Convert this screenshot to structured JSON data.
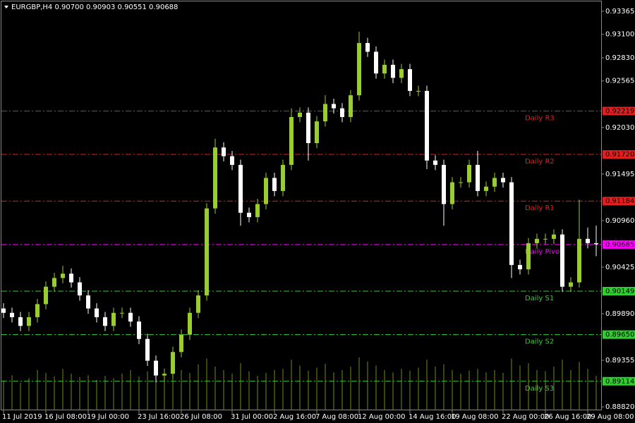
{
  "chart_data": {
    "type": "candlestick",
    "title": "EURGBP,H4  0.90700 0.90903 0.90551 0.90688",
    "categories": [
      "11 Jul 2019",
      null,
      null,
      null,
      null,
      "16 Jul 08:00",
      null,
      null,
      null,
      null,
      "19 Jul 00:00",
      null,
      null,
      null,
      null,
      null,
      "23 Jul 16:00",
      null,
      null,
      null,
      null,
      "26 Jul 08:00",
      null,
      null,
      null,
      null,
      null,
      "31 Jul 00:00",
      null,
      null,
      null,
      null,
      "2 Aug 16:00",
      null,
      null,
      null,
      null,
      "7 Aug 08:00",
      null,
      null,
      null,
      null,
      "12 Aug 00:00",
      null,
      null,
      null,
      null,
      null,
      "14 Aug 16:00",
      null,
      null,
      null,
      null,
      "19 Aug 08:00",
      null,
      null,
      null,
      null,
      null,
      "22 Aug 00:00",
      null,
      null,
      null,
      null,
      "26 Aug 16:00",
      null,
      null,
      null,
      null,
      "29 Aug 08:00",
      null
    ],
    "open": [
      0.8995,
      0.899,
      0.8985,
      0.8975,
      0.8985,
      0.9,
      0.902,
      0.903,
      0.9035,
      0.9025,
      0.901,
      0.8995,
      0.8985,
      0.8975,
      0.899,
      0.899,
      0.898,
      0.896,
      0.8935,
      0.8918,
      0.892,
      0.8945,
      0.8965,
      0.899,
      0.901,
      0.911,
      0.918,
      0.917,
      0.916,
      0.9105,
      0.91,
      0.9115,
      0.9145,
      0.913,
      0.916,
      0.9215,
      0.922,
      0.9185,
      0.921,
      0.923,
      0.9225,
      0.9215,
      0.924,
      0.93,
      0.929,
      0.9265,
      0.9275,
      0.926,
      0.927,
      0.9245,
      0.9245,
      0.9165,
      0.916,
      0.9115,
      0.914,
      0.914,
      0.916,
      0.913,
      0.9135,
      0.9145,
      0.914,
      0.9045,
      0.904,
      0.907,
      0.9075,
      0.9075,
      0.908,
      0.902,
      0.9025,
      0.9075,
      0.907
    ],
    "high": [
      0.9001,
      0.8996,
      0.8991,
      0.8991,
      0.9006,
      0.9026,
      0.9036,
      0.9044,
      0.9041,
      0.9031,
      0.9016,
      0.9001,
      0.8991,
      0.8996,
      0.8996,
      0.8996,
      0.8986,
      0.8966,
      0.8941,
      0.8926,
      0.8951,
      0.8971,
      0.8996,
      0.9016,
      0.9116,
      0.919,
      0.9186,
      0.9176,
      0.9166,
      0.9111,
      0.9121,
      0.9151,
      0.9151,
      0.9166,
      0.9225,
      0.9226,
      0.9226,
      0.9216,
      0.924,
      0.9236,
      0.9231,
      0.9246,
      0.9313,
      0.9306,
      0.9296,
      0.9281,
      0.9281,
      0.9276,
      0.9276,
      0.9251,
      0.9251,
      0.9171,
      0.9166,
      0.9146,
      0.9146,
      0.9166,
      0.9176,
      0.9141,
      0.9151,
      0.9151,
      0.9146,
      0.9051,
      0.9076,
      0.9081,
      0.9081,
      0.9086,
      0.9086,
      0.9031,
      0.912,
      0.9088,
      0.90903
    ],
    "low": [
      0.8984,
      0.8979,
      0.8969,
      0.8969,
      0.8979,
      0.8994,
      0.9014,
      0.9024,
      0.9019,
      0.9004,
      0.8989,
      0.8979,
      0.8969,
      0.8969,
      0.8984,
      0.8974,
      0.8954,
      0.8929,
      0.891,
      0.8912,
      0.8914,
      0.8939,
      0.8959,
      0.8984,
      0.9004,
      0.9104,
      0.9164,
      0.9154,
      0.909,
      0.9094,
      0.9094,
      0.9109,
      0.9124,
      0.9124,
      0.9154,
      0.9209,
      0.9165,
      0.9179,
      0.9204,
      0.9219,
      0.9209,
      0.9209,
      0.9234,
      0.9284,
      0.9259,
      0.9259,
      0.9254,
      0.9254,
      0.9239,
      0.9239,
      0.9155,
      0.9154,
      0.909,
      0.9109,
      0.9134,
      0.9134,
      0.9124,
      0.9124,
      0.9129,
      0.9134,
      0.903,
      0.9034,
      0.9034,
      0.9064,
      0.9069,
      0.9069,
      0.9014,
      0.9014,
      0.9019,
      0.9064,
      0.90551
    ],
    "close": [
      0.899,
      0.8985,
      0.8975,
      0.8985,
      0.9,
      0.902,
      0.903,
      0.9035,
      0.9025,
      0.901,
      0.8995,
      0.8985,
      0.8975,
      0.899,
      0.899,
      0.898,
      0.896,
      0.8935,
      0.8918,
      0.892,
      0.8945,
      0.8965,
      0.899,
      0.901,
      0.911,
      0.918,
      0.917,
      0.916,
      0.9105,
      0.91,
      0.9115,
      0.9145,
      0.913,
      0.916,
      0.9215,
      0.922,
      0.9185,
      0.921,
      0.923,
      0.9225,
      0.9215,
      0.924,
      0.93,
      0.929,
      0.9265,
      0.9275,
      0.926,
      0.927,
      0.9245,
      0.9245,
      0.9165,
      0.916,
      0.9115,
      0.914,
      0.914,
      0.916,
      0.913,
      0.9135,
      0.9145,
      0.914,
      0.9045,
      0.904,
      0.907,
      0.9075,
      0.9075,
      0.908,
      0.902,
      0.9025,
      0.9075,
      0.907,
      0.90688
    ],
    "volumes": [
      520,
      610,
      480,
      560,
      700,
      650,
      590,
      720,
      640,
      580,
      610,
      530,
      600,
      560,
      640,
      700,
      590,
      680,
      760,
      620,
      560,
      700,
      650,
      800,
      900,
      760,
      700,
      640,
      820,
      680,
      600,
      650,
      700,
      720,
      880,
      780,
      690,
      740,
      810,
      660,
      700,
      760,
      920,
      850,
      780,
      700,
      660,
      720,
      690,
      740,
      880,
      760,
      800,
      700,
      640,
      690,
      720,
      660,
      700,
      650,
      900,
      780,
      820,
      700,
      680,
      760,
      880,
      700,
      840,
      720,
      600
    ],
    "up_color": "#9acd32",
    "down_color": "#ffffff",
    "volume_color": "#6b8e23",
    "ylim": [
      0.8878,
      0.93454
    ],
    "yticks": [
      0.93365,
      {
        "value": 0.931,
        "label": "0.93100"
      },
      {
        "value": 0.9283,
        "label": "0.92830"
      },
      0.92565,
      {
        "value": 0.9203,
        "label": "0.92030"
      },
      0.91495,
      {
        "value": 0.9096,
        "label": "0.90960"
      },
      0.90425,
      {
        "value": 0.8989,
        "label": "0.89890"
      },
      0.89355,
      {
        "value": 0.8882,
        "label": "0.88820"
      }
    ],
    "grid": false,
    "levels": [
      {
        "name": "Daily R3",
        "value": 0.92219,
        "color": "#e02020"
      },
      {
        "name": "Daily R2",
        "value": {
          "value": 0.9172,
          "label": "0.91720"
        },
        "color": "#e02020"
      },
      {
        "name": "Daily R1",
        "value": 0.91184,
        "color": "#e02020"
      },
      {
        "name": "Daily Pivot",
        "value": 0.90685,
        "color": "#ff00ff"
      },
      {
        "name": "Daily S1",
        "value": 0.90149,
        "color": "#32cd32"
      },
      {
        "name": "Daily S2",
        "value": {
          "value": 0.8965,
          "label": "0.89650"
        },
        "color": "#32cd32"
      },
      {
        "name": "Daily S3",
        "value": 0.89114,
        "color": "#32cd32"
      }
    ]
  }
}
